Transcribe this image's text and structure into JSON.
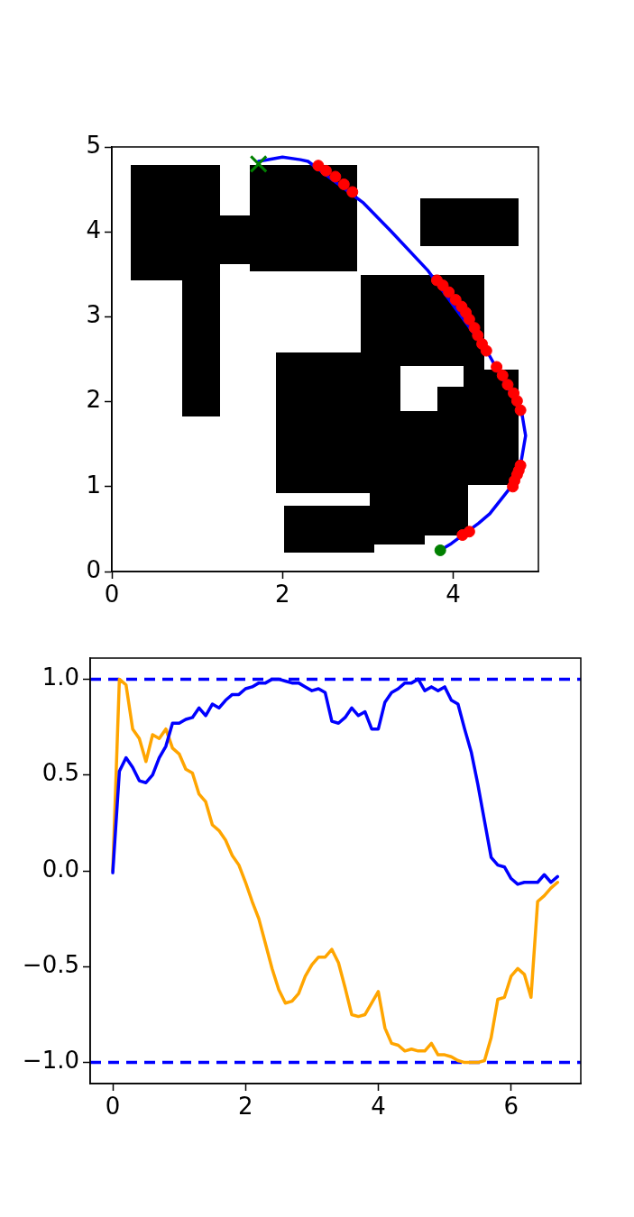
{
  "chart_data": [
    {
      "type": "line",
      "xlim": [
        0,
        5
      ],
      "ylim": [
        0,
        5
      ],
      "xticks": [
        0,
        2,
        4
      ],
      "yticks": [
        0,
        1,
        2,
        3,
        4,
        5
      ],
      "grid": false,
      "legend": false,
      "series": [
        {
          "type": "line",
          "color": "#0000ff",
          "marker": "none",
          "x": [
            3.83,
            3.98,
            4.3,
            4.43,
            4.68,
            4.79,
            4.85,
            4.8,
            4.5,
            4.4,
            3.7,
            3.27,
            2.95,
            2.3,
            2.21,
            2.0,
            1.72
          ],
          "values": [
            0.24,
            0.33,
            0.57,
            0.68,
            1.0,
            1.25,
            1.6,
            1.9,
            2.41,
            2.59,
            3.55,
            4.01,
            4.34,
            4.83,
            4.85,
            4.88,
            4.83
          ]
        },
        {
          "type": "scatter",
          "color": "#ff0000",
          "marker": "circle",
          "x": [
            4.11,
            4.19,
            4.7,
            4.72,
            4.75,
            4.77,
            4.79,
            4.79,
            4.75,
            4.71,
            4.64,
            4.58,
            4.51,
            4.39,
            4.34,
            4.29,
            4.25,
            4.19,
            4.15,
            4.1,
            4.03,
            3.95,
            3.88,
            3.81,
            2.82,
            2.72,
            2.62,
            2.51,
            2.42
          ],
          "values": [
            0.43,
            0.47,
            1.0,
            1.07,
            1.14,
            1.19,
            1.25,
            1.9,
            2.01,
            2.1,
            2.2,
            2.31,
            2.41,
            2.6,
            2.68,
            2.78,
            2.87,
            2.97,
            3.05,
            3.12,
            3.2,
            3.29,
            3.37,
            3.43,
            4.47,
            4.56,
            4.65,
            4.72,
            4.78
          ]
        },
        {
          "type": "scatter",
          "color": "#008000",
          "marker": "circle",
          "x": [
            3.85
          ],
          "values": [
            0.25
          ]
        },
        {
          "type": "scatter",
          "color": "#008000",
          "marker": "cross",
          "x": [
            1.72
          ],
          "values": [
            4.8
          ]
        }
      ]
    },
    {
      "type": "line",
      "xlim": [
        -0.34,
        7.05
      ],
      "ylim": [
        -1.11,
        1.11
      ],
      "xticks": [
        0,
        2,
        4,
        6
      ],
      "yticks": [
        {
          "value": -1,
          "label": "−1.0"
        },
        {
          "value": -0.5,
          "label": "−0.5"
        },
        {
          "value": 0,
          "label": "0.0"
        },
        {
          "value": 0.5,
          "label": "0.5"
        },
        {
          "value": 1,
          "label": "1.0"
        }
      ],
      "grid": false,
      "legend": false,
      "ref_lines": [
        {
          "axis": "y",
          "value": 1,
          "color": "#0000ff",
          "line_style": "dashed"
        },
        {
          "axis": "y",
          "value": -1,
          "color": "#0000ff",
          "line_style": "dashed"
        }
      ],
      "x": [
        0,
        0.1,
        0.2,
        0.3,
        0.4,
        0.5,
        0.6,
        0.7,
        0.8,
        0.9,
        1.0,
        1.1,
        1.2,
        1.3,
        1.4,
        1.5,
        1.6,
        1.7,
        1.8,
        1.9,
        2.0,
        2.1,
        2.2,
        2.3,
        2.4,
        2.5,
        2.6,
        2.7,
        2.8,
        2.9,
        3.0,
        3.1,
        3.2,
        3.3,
        3.4,
        3.5,
        3.6,
        3.7,
        3.8,
        3.9,
        4.0,
        4.1,
        4.2,
        4.3,
        4.4,
        4.5,
        4.6,
        4.7,
        4.8,
        4.9,
        5.0,
        5.1,
        5.2,
        5.3,
        5.4,
        5.5,
        5.6,
        5.7,
        5.8,
        5.9,
        6.0,
        6.1,
        6.2,
        6.3,
        6.4,
        6.5,
        6.6,
        6.7
      ],
      "series": [
        {
          "color": "#0000ff",
          "marker": "none",
          "values": [
            -0.01,
            0.52,
            0.59,
            0.54,
            0.47,
            0.46,
            0.5,
            0.59,
            0.65,
            0.77,
            0.77,
            0.79,
            0.8,
            0.85,
            0.81,
            0.87,
            0.85,
            0.89,
            0.92,
            0.92,
            0.95,
            0.96,
            0.98,
            0.98,
            1.0,
            1.0,
            0.99,
            0.98,
            0.98,
            0.96,
            0.94,
            0.95,
            0.93,
            0.78,
            0.77,
            0.8,
            0.85,
            0.81,
            0.83,
            0.74,
            0.74,
            0.88,
            0.93,
            0.95,
            0.98,
            0.98,
            1.0,
            0.94,
            0.96,
            0.94,
            0.96,
            0.89,
            0.87,
            0.74,
            0.62,
            0.45,
            0.26,
            0.07,
            0.03,
            0.02,
            -0.04,
            -0.07,
            -0.06,
            -0.06,
            -0.06,
            -0.02,
            -0.06,
            -0.03
          ]
        },
        {
          "color": "#ffa500",
          "marker": "none",
          "values": [
            0.0,
            1.0,
            0.97,
            0.74,
            0.69,
            0.57,
            0.71,
            0.69,
            0.74,
            0.64,
            0.61,
            0.53,
            0.51,
            0.4,
            0.36,
            0.24,
            0.21,
            0.16,
            0.08,
            0.03,
            -0.06,
            -0.16,
            -0.25,
            -0.38,
            -0.51,
            -0.62,
            -0.69,
            -0.68,
            -0.64,
            -0.55,
            -0.49,
            -0.45,
            -0.45,
            -0.41,
            -0.48,
            -0.61,
            -0.75,
            -0.76,
            -0.75,
            -0.69,
            -0.63,
            -0.82,
            -0.9,
            -0.91,
            -0.94,
            -0.93,
            -0.94,
            -0.94,
            -0.9,
            -0.96,
            -0.96,
            -0.97,
            -0.99,
            -1.0,
            -1.0,
            -1.0,
            -0.99,
            -0.87,
            -0.67,
            -0.66,
            -0.55,
            -0.51,
            -0.54,
            -0.66,
            -0.16,
            -0.13,
            -0.09,
            -0.06
          ]
        }
      ]
    }
  ]
}
